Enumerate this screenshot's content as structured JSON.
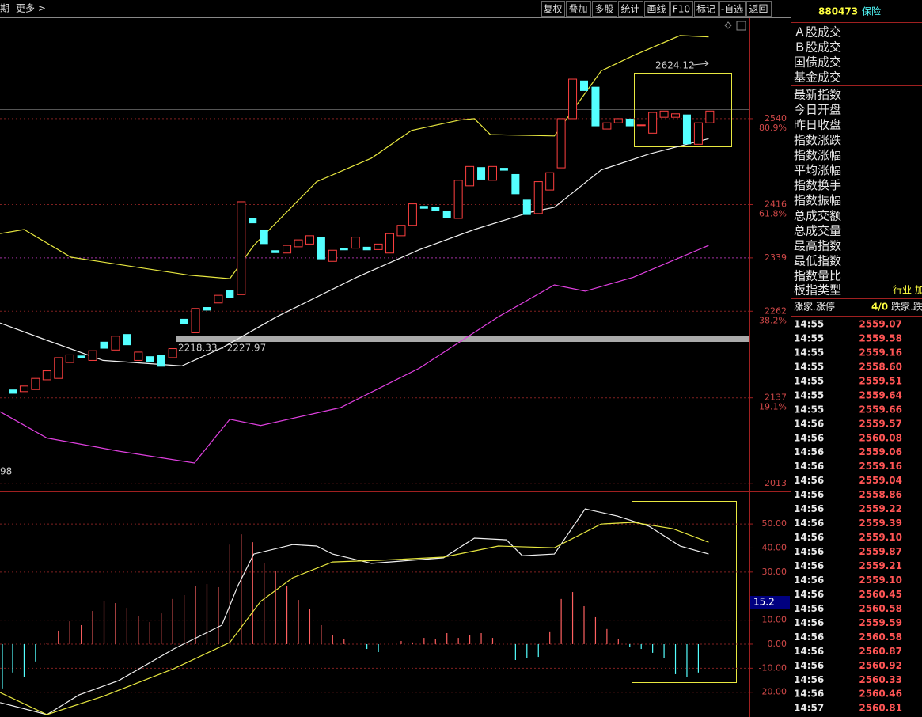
{
  "toolbar": {
    "left": [
      "期",
      "更多 >"
    ],
    "buttons": [
      "复权",
      "叠加",
      "多股",
      "统计",
      "画线",
      "F10",
      "标记",
      "-自选",
      "返回"
    ]
  },
  "panel": {
    "code": "880473",
    "name": "保险",
    "labels1": [
      "Ａ股成交",
      "Ｂ股成交",
      "国债成交",
      "基金成交"
    ],
    "labels2": [
      "最新指数",
      "今日开盘",
      "昨日收盘",
      "指数涨跌",
      "指数涨幅",
      "平均涨幅",
      "指数换手",
      "指数振幅",
      "总成交额",
      "总成交量",
      "最高指数",
      "最低指数",
      "指数量比"
    ],
    "sector_label": "板指类型",
    "sector_value": "行业 加",
    "breadth": [
      "涨家.涨停",
      "4/0",
      "跌家.跌"
    ],
    "ticks": [
      [
        "14:55",
        "2559.07"
      ],
      [
        "14:55",
        "2559.58"
      ],
      [
        "14:55",
        "2559.16"
      ],
      [
        "14:55",
        "2558.60"
      ],
      [
        "14:55",
        "2559.51"
      ],
      [
        "14:55",
        "2559.64"
      ],
      [
        "14:55",
        "2559.66"
      ],
      [
        "14:56",
        "2559.57"
      ],
      [
        "14:56",
        "2560.08"
      ],
      [
        "14:56",
        "2559.06"
      ],
      [
        "14:56",
        "2559.16"
      ],
      [
        "14:56",
        "2559.04"
      ],
      [
        "14:56",
        "2558.86"
      ],
      [
        "14:56",
        "2559.22"
      ],
      [
        "14:56",
        "2559.39"
      ],
      [
        "14:56",
        "2559.10"
      ],
      [
        "14:56",
        "2559.87"
      ],
      [
        "14:56",
        "2559.21"
      ],
      [
        "14:56",
        "2559.10"
      ],
      [
        "14:56",
        "2560.45"
      ],
      [
        "14:56",
        "2560.58"
      ],
      [
        "14:56",
        "2559.59"
      ],
      [
        "14:56",
        "2560.58"
      ],
      [
        "14:56",
        "2560.87"
      ],
      [
        "14:56",
        "2560.92"
      ],
      [
        "14:56",
        "2560.33"
      ],
      [
        "14:56",
        "2560.46"
      ],
      [
        "14:57",
        "2560.81"
      ]
    ]
  },
  "main": {
    "ylim": [
      2003,
      2685
    ],
    "yticks": [
      2540,
      2416,
      2339,
      2262,
      2137,
      2013
    ],
    "fib_labels": [
      "80.9%",
      "61.8%",
      "38.2%",
      "19.1%"
    ],
    "high_label": "2624.12",
    "range_label": "2218.33 - 2227.97",
    "left_label": "98",
    "up_color": "#ff4040",
    "down_color": "#54ffff",
    "candles": {
      "open": [
        2149,
        2146,
        2149,
        2163,
        2165,
        2188,
        2198,
        2191,
        2218,
        2206,
        2229,
        2191,
        2197,
        2199,
        2195,
        2251,
        2231,
        2268,
        2274,
        2292,
        2286,
        2396,
        2380,
        2350,
        2346,
        2355,
        2359,
        2369,
        2334,
        2353,
        2353,
        2355,
        2351,
        2346,
        2371,
        2386,
        2414,
        2412,
        2407,
        2396,
        2443,
        2470,
        2451,
        2469,
        2460,
        2423,
        2403,
        2437,
        2469,
        2540,
        2595,
        2586,
        2525,
        2534,
        2540,
        2531,
        2519,
        2542,
        2542,
        2546,
        2503,
        2534
      ],
      "close": [
        2143,
        2154,
        2165,
        2176,
        2195,
        2199,
        2194,
        2205,
        2208,
        2226,
        2213,
        2203,
        2188,
        2182,
        2208,
        2243,
        2266,
        2263,
        2285,
        2281,
        2420,
        2389,
        2359,
        2346,
        2357,
        2365,
        2371,
        2337,
        2350,
        2350,
        2369,
        2350,
        2359,
        2374,
        2386,
        2417,
        2410,
        2407,
        2396,
        2451,
        2471,
        2452,
        2471,
        2465,
        2431,
        2401,
        2449,
        2462,
        2540,
        2597,
        2580,
        2529,
        2534,
        2540,
        2529,
        2531,
        2549,
        2551,
        2547,
        2503,
        2534,
        2551
      ]
    },
    "upper": {
      "color": "#e8e840",
      "x": [
        -1.1,
        1.0,
        5.1,
        15.5,
        19.0,
        21.1,
        26.6,
        31.4,
        34.9,
        39.1,
        40.4,
        41.8,
        47.4,
        51.5,
        54.3,
        58.4,
        60.9
      ],
      "values": [
        2374,
        2380,
        2340,
        2314,
        2309,
        2357,
        2449,
        2483,
        2523,
        2538,
        2540,
        2517,
        2515,
        2609,
        2631,
        2660,
        2658
      ]
    },
    "middle": {
      "color": "#f0f0f0",
      "x": [
        -1.1,
        3.0,
        7.9,
        14.8,
        18.3,
        23.1,
        30.1,
        35.6,
        40.4,
        45.3,
        47.4,
        51.5,
        55.7,
        60.9
      ],
      "values": [
        2245,
        2220,
        2191,
        2183,
        2209,
        2254,
        2311,
        2351,
        2380,
        2405,
        2412,
        2466,
        2489,
        2511
      ]
    },
    "lower": {
      "color": "#e040e0",
      "x": [
        -1.1,
        3.0,
        9.3,
        15.9,
        19.0,
        21.7,
        28.7,
        35.6,
        42.5,
        47.4,
        50.1,
        54.3,
        60.9
      ],
      "values": [
        2117,
        2079,
        2060,
        2043,
        2106,
        2097,
        2123,
        2180,
        2254,
        2300,
        2291,
        2311,
        2357
      ]
    }
  },
  "sub": {
    "ylim": [
      -30.3,
      63.2
    ],
    "yticks": [
      {
        "value": 50,
        "label": "50.00"
      },
      {
        "value": 40,
        "label": "40.00"
      },
      {
        "value": 30,
        "label": "30.00"
      },
      {
        "value": 10,
        "label": "10.00"
      },
      {
        "value": 0,
        "label": "0.00"
      },
      {
        "value": -10,
        "label": "-10.00"
      },
      {
        "value": -20,
        "label": "-20.00"
      }
    ],
    "cursor_label": "15.2",
    "extra_bars": [
      -18.4
    ],
    "bars": [
      -11.8,
      -13.8,
      -7.2,
      0.5,
      5.6,
      9.5,
      7.9,
      13.8,
      17.8,
      17.1,
      15.1,
      11.8,
      9.2,
      12.8,
      18.8,
      20.4,
      24.3,
      25,
      23.7,
      41.4,
      45.7,
      42.4,
      33.6,
      30.3,
      24.3,
      18.4,
      14.5,
      7.9,
      3.9,
      2.0,
      0,
      -2,
      -3.3,
      0,
      1.3,
      0.7,
      2.6,
      2.0,
      4.6,
      2.6,
      3.9,
      4.6,
      2.6,
      0,
      -6.6,
      -5.9,
      -5.3,
      5.3,
      18.8,
      21.7,
      15.8,
      11.2,
      6.3,
      2.0,
      -1.3,
      -2,
      -3.6,
      -5.9,
      -12.5,
      -13.8,
      -11.8
    ],
    "dif": {
      "color": "#f0f0f0",
      "x": [
        -1.1,
        3.0,
        5.8,
        9.3,
        14.1,
        18.3,
        19.7,
        21.1,
        24.5,
        26.6,
        28.0,
        31.4,
        34.9,
        37.7,
        40.4,
        43.2,
        44.6,
        47.4,
        50.1,
        52.9,
        55.7,
        58.4,
        60.9
      ],
      "values": [
        -24.3,
        -29.3,
        -21.1,
        -15.1,
        -2.0,
        7.9,
        24.3,
        37.5,
        41.4,
        40.8,
        37.5,
        33.6,
        34.9,
        35.9,
        44.1,
        43.4,
        36.8,
        37.5,
        56.3,
        53.3,
        49.0,
        40.8,
        37.5
      ]
    },
    "dea": {
      "color": "#e8e840",
      "x": [
        -1.1,
        3.0,
        7.9,
        14.1,
        19.0,
        21.7,
        24.5,
        28.0,
        32.1,
        37.7,
        42.5,
        47.4,
        51.5,
        54.3,
        57.8,
        60.9
      ],
      "values": [
        -20.1,
        -29.3,
        -21.7,
        -10.2,
        0.7,
        17.8,
        27.6,
        34.2,
        34.9,
        36.2,
        40.8,
        40.1,
        50,
        50.7,
        48.0,
        42.4
      ]
    }
  }
}
